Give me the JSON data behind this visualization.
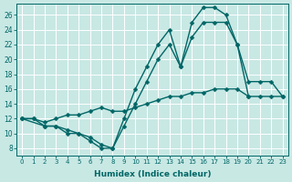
{
  "bg_color": "#c8e8e4",
  "grid_color": "#ffffff",
  "line_color": "#006666",
  "xlabel": "Humidex (Indice chaleur)",
  "xlim": [
    -0.5,
    23.5
  ],
  "ylim": [
    7,
    27.5
  ],
  "xticks": [
    0,
    1,
    2,
    3,
    4,
    5,
    6,
    7,
    8,
    9,
    10,
    11,
    12,
    13,
    14,
    15,
    16,
    17,
    18,
    19,
    20,
    21,
    22,
    23
  ],
  "yticks": [
    8,
    10,
    12,
    14,
    16,
    18,
    20,
    22,
    24,
    26
  ],
  "line1_x": [
    0,
    1,
    2,
    3,
    4,
    5,
    6,
    7,
    8,
    9,
    10,
    11,
    12,
    13,
    14,
    15,
    16,
    17,
    18,
    19,
    20
  ],
  "line1_y": [
    12,
    12,
    11,
    11,
    10,
    10,
    9,
    8,
    8,
    12,
    16,
    19,
    22,
    24,
    19,
    25,
    27,
    27,
    26,
    22,
    15
  ],
  "line2_x": [
    0,
    1,
    2,
    3,
    4,
    5,
    6,
    7,
    8,
    9,
    10,
    11,
    12,
    13,
    14,
    15,
    16,
    17,
    18,
    19,
    20,
    21,
    22,
    23
  ],
  "line2_y": [
    12,
    12,
    11.5,
    12,
    12.5,
    12.5,
    13,
    13.5,
    13,
    13,
    13.5,
    14,
    14.5,
    15,
    15,
    15.5,
    15.5,
    16,
    16,
    16,
    15,
    15,
    15,
    15
  ],
  "line3_x": [
    0,
    2,
    3,
    4,
    5,
    6,
    7,
    8,
    9,
    10,
    11,
    12,
    13,
    14,
    15,
    16,
    17,
    18,
    19,
    20,
    21,
    22,
    23
  ],
  "line3_y": [
    12,
    11,
    11,
    10.5,
    10,
    9.5,
    8.5,
    8,
    11,
    14,
    17,
    20,
    22,
    19,
    23,
    25,
    25,
    25,
    22,
    17,
    17,
    17,
    15
  ]
}
